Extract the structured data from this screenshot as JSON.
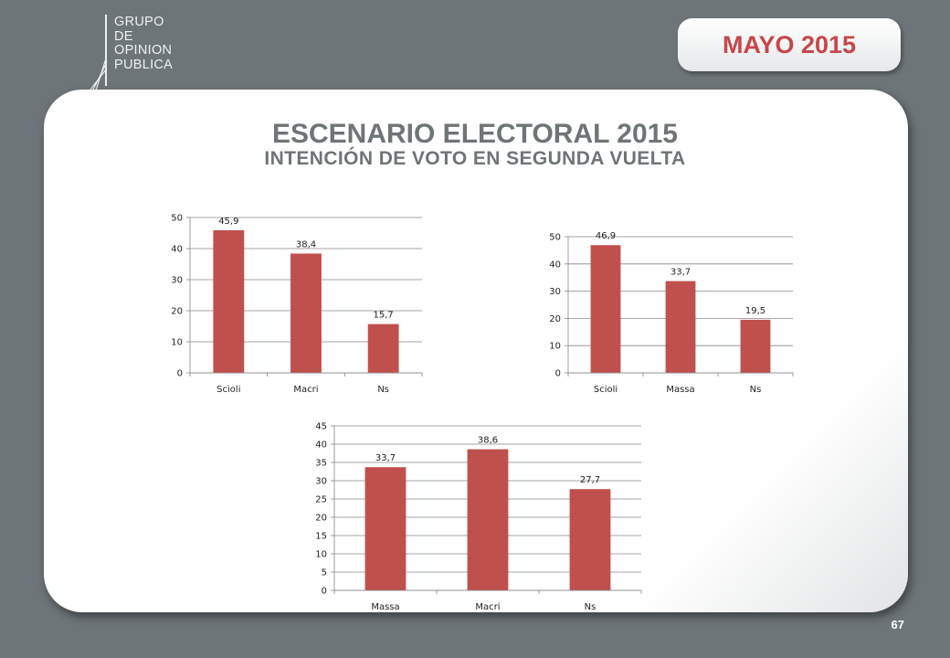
{
  "logo": {
    "lines": [
      "GRUPO",
      "DE",
      "OPINION",
      "PUBLICA"
    ]
  },
  "date_label": "MAYO 2015",
  "title": "ESCENARIO ELECTORAL 2015",
  "subtitle": "INTENCIÓN DE VOTO EN SEGUNDA VUELTA",
  "page_number": "67",
  "colors": {
    "bar": "#c0504d",
    "background": "#6e7578",
    "accent_text": "#c7464a"
  },
  "chart_data": [
    {
      "type": "bar",
      "categories": [
        "Scioli",
        "Macri",
        "Ns"
      ],
      "values": [
        45.9,
        38.4,
        15.7
      ],
      "value_labels": [
        "45,9",
        "38,4",
        "15,7"
      ],
      "ylim": [
        0,
        50
      ],
      "yticks": [
        0,
        10,
        20,
        30,
        40,
        50
      ],
      "grid": true,
      "legend": "none"
    },
    {
      "type": "bar",
      "categories": [
        "Scioli",
        "Massa",
        "Ns"
      ],
      "values": [
        46.9,
        33.7,
        19.5
      ],
      "value_labels": [
        "46,9",
        "33,7",
        "19,5"
      ],
      "ylim": [
        0,
        50
      ],
      "yticks": [
        0,
        10,
        20,
        30,
        40,
        50
      ],
      "grid": true,
      "legend": "none"
    },
    {
      "type": "bar",
      "categories": [
        "Massa",
        "Macri",
        "Ns"
      ],
      "values": [
        33.7,
        38.6,
        27.7
      ],
      "value_labels": [
        "33,7",
        "38,6",
        "27,7"
      ],
      "ylim": [
        0,
        45
      ],
      "yticks": [
        0,
        5,
        10,
        15,
        20,
        25,
        30,
        35,
        40,
        45
      ],
      "grid": true,
      "legend": "none"
    }
  ]
}
